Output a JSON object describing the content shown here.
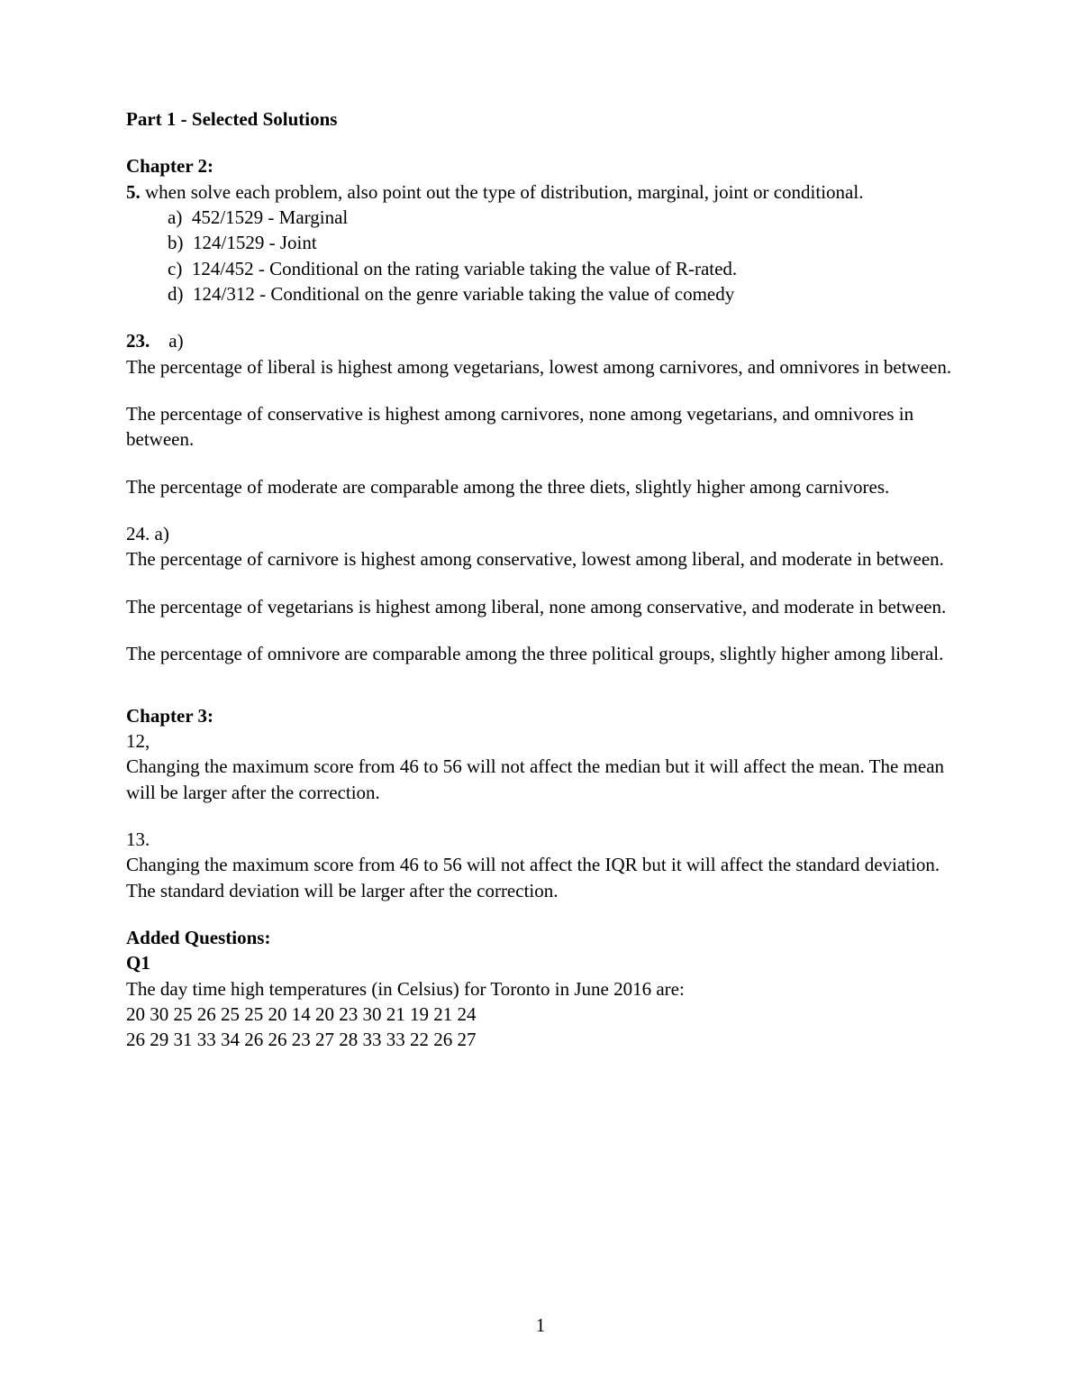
{
  "part_title": "Part 1 - Selected Solutions",
  "ch2": {
    "heading": "Chapter 2:",
    "q5_num": "5.",
    "q5_intro": " when solve each problem, also point out the type of distribution, marginal, joint or conditional.",
    "a_label": "a)",
    "a_text": "452/1529 - Marginal",
    "b_label": "b)",
    "b_text": "124/1529 - Joint",
    "c_label": "c)",
    "c_text": "124/452 - Conditional on the rating variable taking the value of R-rated.",
    "d_label": "d)",
    "d_text": "124/312 - Conditional on the genre variable taking the value of comedy",
    "q23_label": "23.",
    "q23_sub": "a)",
    "q23_p1": "The percentage of liberal is highest among vegetarians, lowest among carnivores, and omnivores in between.",
    "q23_p2": "The percentage of conservative is highest among carnivores, none among vegetarians, and omnivores in between.",
    "q23_p3": "The percentage of moderate are comparable among the three diets, slightly higher among carnivores.",
    "q24_label": "24. a)",
    "q24_p1": "The percentage of carnivore is highest among conservative, lowest among liberal, and moderate in between.",
    "q24_p2": "The percentage of vegetarians is highest among liberal, none among conservative, and moderate in between.",
    "q24_p3": "The percentage of omnivore are comparable among the three political groups, slightly higher among liberal."
  },
  "ch3": {
    "heading": "Chapter 3:",
    "q12_label": "12,",
    "q12_text": "Changing the maximum score from 46 to 56 will not affect the median but it will affect the mean. The mean will be larger after the correction.",
    "q13_label": "13.",
    "q13_text": "Changing the maximum score from 46 to 56 will not affect the IQR but it will affect the standard deviation. The standard deviation will be larger after the correction."
  },
  "added": {
    "heading": "Added Questions:",
    "q1_label": "Q1",
    "q1_intro": "The day time high temperatures (in Celsius) for Toronto in June 2016 are:",
    "q1_row1": "20 30 25 26 25 25 20 14 20 23 30 21 19 21 24",
    "q1_row2": "26 29 31 33 34 26 26 23 27 28 33 33 22 26 27"
  },
  "page_number": "1"
}
